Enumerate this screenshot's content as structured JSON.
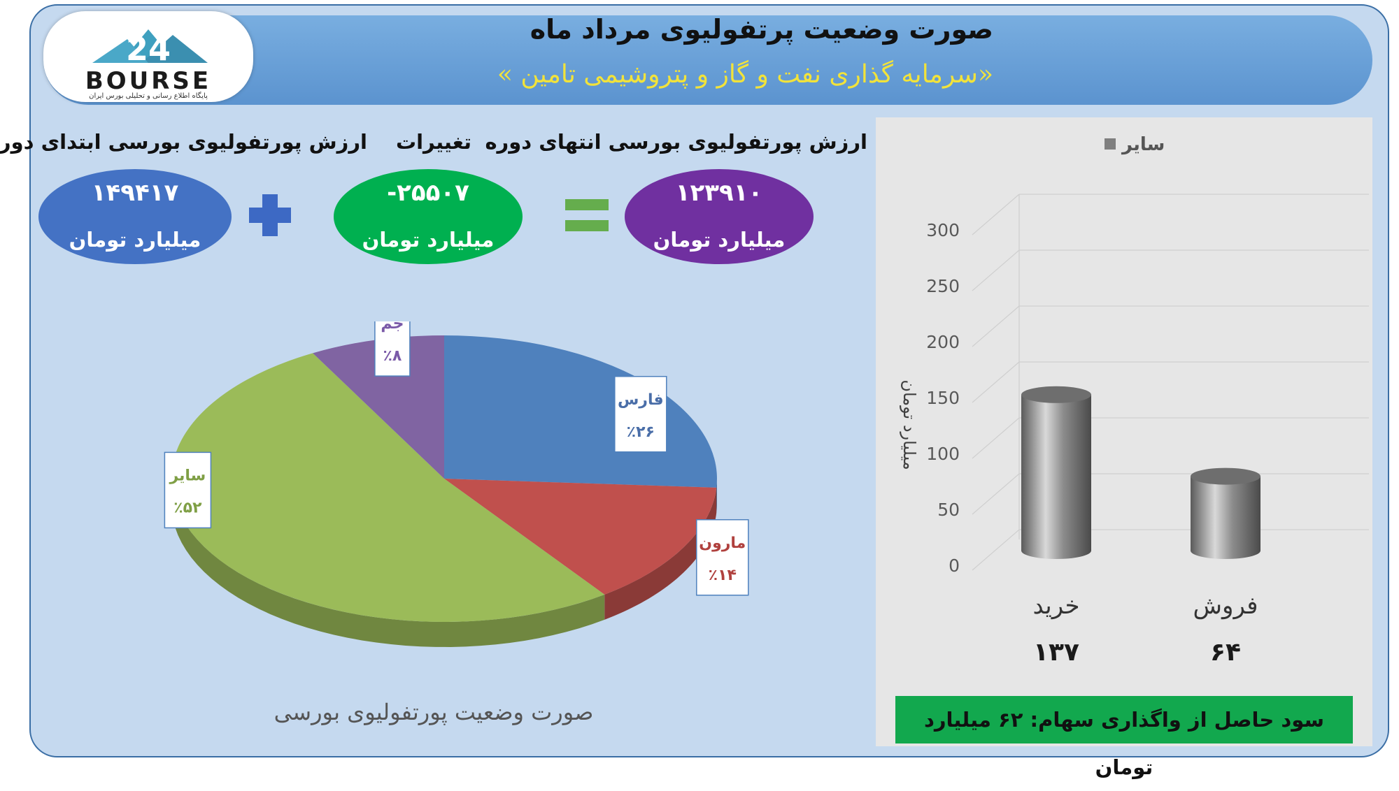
{
  "header": {
    "title": "صورت وضعیت پرتفولیوی مرداد ماه",
    "subtitle": "«سرمایه گذاری نفت و گاز و پتروشیمی تامین »"
  },
  "logo": {
    "text": "BOURSE",
    "subtext": "پایگاه اطلاع رسانی و تحلیلی بورس ایران"
  },
  "summary": {
    "start": {
      "label": "ارزش پورتفولیوی بورسی ابتدای دوره",
      "value": "۱۴۹۴۱۷",
      "unit": "میلیارد تومان",
      "color": "#4472c4"
    },
    "change": {
      "label": "تغییرات",
      "value": "-۲۵۵۰۷",
      "unit": "میلیارد تومان",
      "color": "#00b050"
    },
    "end": {
      "label": "ارزش پورتفولیوی بورسی انتهای دوره",
      "value": "۱۲۳۹۱۰",
      "unit": "میلیارد تومان",
      "color": "#7030a0"
    }
  },
  "profit_text": "سود حاصل از واگذاری سهام: ۶۲ میلیارد تومان",
  "chart_data": [
    {
      "type": "pie",
      "title": "صورت وضعیت پورتفولیوی بورسی",
      "slices": [
        {
          "label": "فارس",
          "value": 26,
          "value_label": "٪۲۶",
          "color": "#4f81bd"
        },
        {
          "label": "مارون",
          "value": 14,
          "value_label": "٪۱۴",
          "color": "#c0504d"
        },
        {
          "label": "سایر",
          "value": 52,
          "value_label": "٪۵۲",
          "color": "#9bbb59"
        },
        {
          "label": "جم",
          "value": 8,
          "value_label": "٪۸",
          "color": "#8064a2"
        }
      ]
    },
    {
      "type": "bar",
      "categories": [
        "خرید",
        "فروش"
      ],
      "series": [
        {
          "name": "سایر",
          "values": [
            137,
            64
          ]
        }
      ],
      "value_labels": [
        "۱۳۷",
        "۶۴"
      ],
      "ylabel": "میلیارد تومان",
      "ylim": [
        0,
        300
      ],
      "yticks": [
        0,
        50,
        100,
        150,
        200,
        250,
        300
      ],
      "legend": "top",
      "grid": true,
      "bar_color": "#7f7f7f"
    }
  ]
}
